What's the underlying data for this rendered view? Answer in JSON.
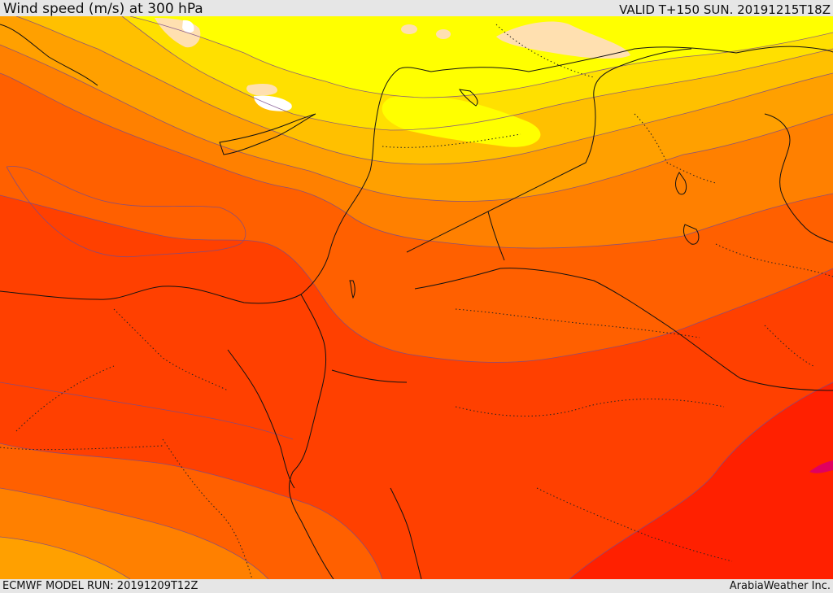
{
  "header": {
    "title": "Wind speed (m/s) at 300 hPa",
    "valid": "VALID T+150 SUN. 20191215T18Z"
  },
  "footer": {
    "model_run": "ECMWF MODEL RUN: 20191209T12Z",
    "credit": "ArabiaWeather Inc."
  },
  "map": {
    "field": "wind speed at 300 hPa",
    "palette": [
      "#ffffff",
      "#ffe0b0",
      "#ffff00",
      "#ffe000",
      "#ffc000",
      "#ffa000",
      "#ff8000",
      "#ff6000",
      "#ff4000",
      "#ff2000",
      "#e00000"
    ]
  }
}
